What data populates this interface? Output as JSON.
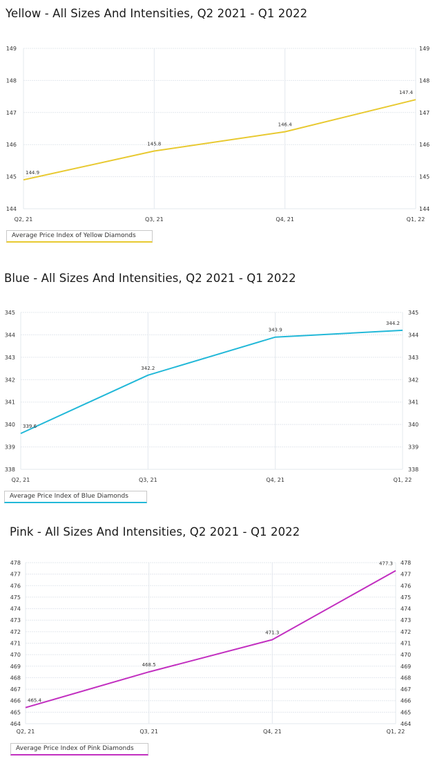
{
  "chart_data": [
    {
      "type": "line",
      "title": "Yellow - All Sizes And Intensities, Q2 2021 - Q1 2022",
      "categories": [
        "Q2, 21",
        "Q3, 21",
        "Q4, 21",
        "Q1, 22"
      ],
      "series": [
        {
          "name": "Average Price Index of Yellow Diamonds",
          "values": [
            144.9,
            145.8,
            146.4,
            147.4
          ],
          "color": "#e8c930"
        }
      ],
      "value_labels": [
        "144.9",
        "145.8",
        "146.4",
        "147.4"
      ],
      "ylim": [
        144,
        149
      ],
      "yticks": [
        "144",
        "145",
        "146",
        "147",
        "148",
        "149"
      ],
      "grid": true,
      "dual_y_axis": true,
      "legend": "bottom-left"
    },
    {
      "type": "line",
      "title": "Blue - All Sizes And Intensities, Q2 2021 - Q1 2022",
      "categories": [
        "Q2, 21",
        "Q3, 21",
        "Q4, 21",
        "Q1, 22"
      ],
      "series": [
        {
          "name": "Average Price Index of Blue Diamonds",
          "values": [
            339.6,
            342.2,
            343.9,
            344.2
          ],
          "color": "#22b8d8"
        }
      ],
      "value_labels": [
        "339.6",
        "342.2",
        "343.9",
        "344.2"
      ],
      "ylim": [
        338,
        345
      ],
      "yticks": [
        "338",
        "339",
        "340",
        "341",
        "342",
        "343",
        "344",
        "345"
      ],
      "grid": true,
      "dual_y_axis": true,
      "legend": "bottom-left"
    },
    {
      "type": "line",
      "title": "Pink - All Sizes And Intensities, Q2 2021 - Q1 2022",
      "categories": [
        "Q2, 21",
        "Q3, 21",
        "Q4, 21",
        "Q1, 22"
      ],
      "series": [
        {
          "name": "Average Price Index of Pink Diamonds",
          "values": [
            465.4,
            468.5,
            471.3,
            477.3
          ],
          "color": "#c22fc0"
        }
      ],
      "value_labels": [
        "465.4",
        "468.5",
        "471.3",
        "477.3"
      ],
      "ylim": [
        464,
        478
      ],
      "yticks": [
        "464",
        "465",
        "466",
        "467",
        "468",
        "469",
        "470",
        "471",
        "472",
        "473",
        "474",
        "475",
        "476",
        "477",
        "478"
      ],
      "grid": true,
      "dual_y_axis": true,
      "legend": "bottom-left"
    }
  ]
}
